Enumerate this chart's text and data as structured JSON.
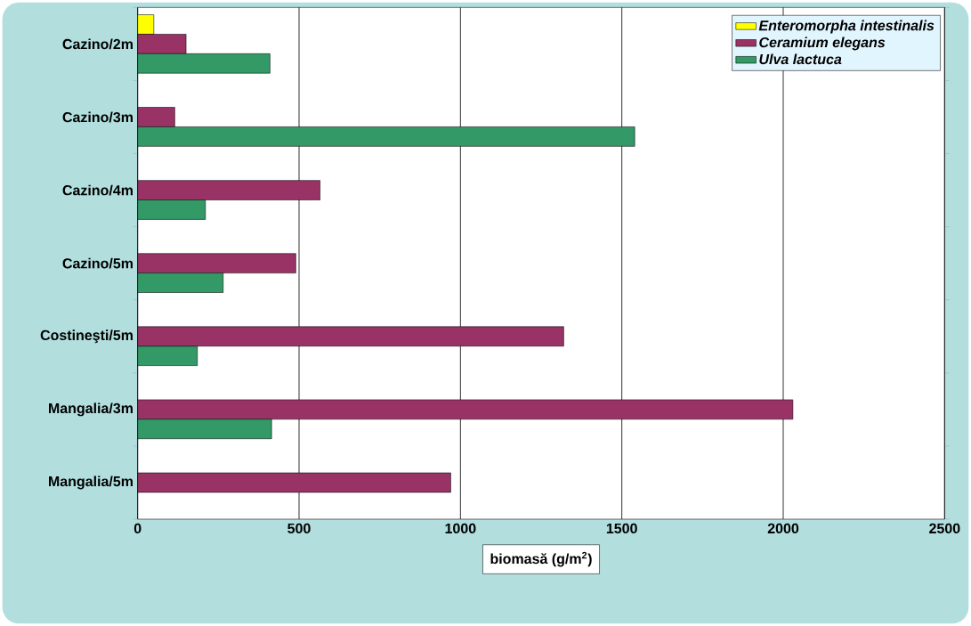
{
  "chart_data": {
    "type": "bar",
    "orientation": "horizontal",
    "xlabel": "biomasă (g/m$^{2}$)",
    "categories": [
      "Cazino/2m",
      "Cazino/3m",
      "Cazino/4m",
      "Cazino/5m",
      "Costineşti/5m",
      "Mangalia/3m",
      "Mangalia/5m"
    ],
    "series": [
      {
        "name": "Enteromorpha intestinalis",
        "color": "#ffff00",
        "values": [
          50,
          null,
          null,
          null,
          null,
          null,
          null
        ]
      },
      {
        "name": "Ceramium elegans",
        "color": "#993366",
        "values": [
          150,
          115,
          565,
          490,
          1320,
          2030,
          970
        ]
      },
      {
        "name": "Ulva lactuca",
        "color": "#339966",
        "values": [
          410,
          1540,
          210,
          265,
          185,
          415,
          null
        ]
      }
    ],
    "xlim": [
      0,
      2500
    ],
    "xticks": [
      0,
      500,
      1000,
      1500,
      2000,
      2500
    ],
    "grid": "x",
    "legend": "top right"
  }
}
